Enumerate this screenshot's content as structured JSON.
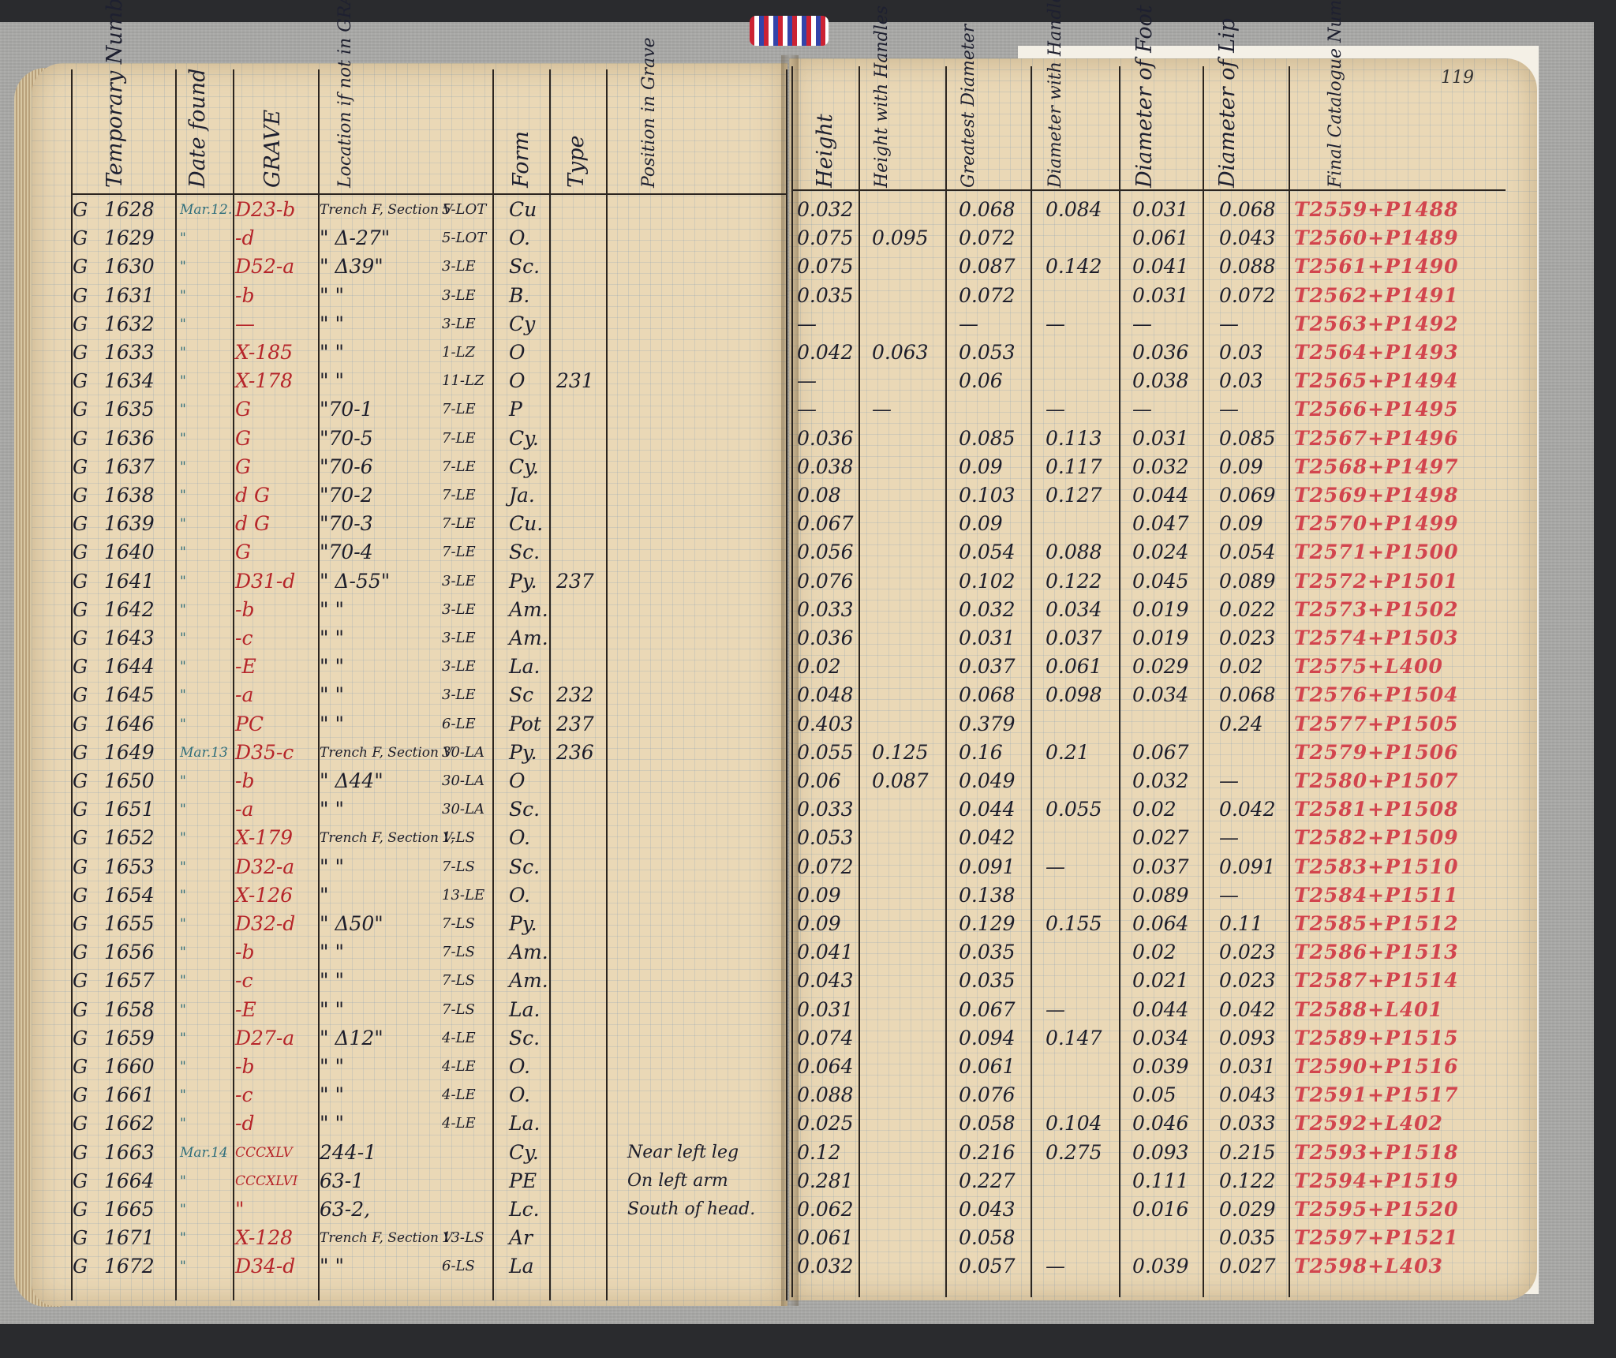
{
  "page_number": "119",
  "headers": {
    "temp_number": "Temporary Number",
    "date_found": "Date found",
    "grave": "GRAVE",
    "location": "Location if not in GRAVE",
    "form": "Form",
    "type": "Type",
    "position": "Position in Grave",
    "height": "Height",
    "height_handles": "Height with Handles",
    "greatest_diameter": "Greatest Diameter",
    "diameter_handles": "Diameter with Handles",
    "diameter_foot": "Diameter of Foot",
    "diameter_lip": "Diameter of Lip",
    "catalogue": "Final Catalogue Number"
  },
  "rows": [
    {
      "prefix": "G",
      "num": "1628",
      "date": "Mar.12.",
      "grave": "D23-b",
      "loc": "Trench F, Section V",
      "locn": "5-LOT",
      "form": "Cu",
      "type": "",
      "pos": "",
      "h": "0.032",
      "hh": "",
      "gd": "0.068",
      "dh": "0.084",
      "df": "0.031",
      "dl": "0.068",
      "cat": "T2559+P1488"
    },
    {
      "prefix": "G",
      "num": "1629",
      "date": "\"",
      "grave": "-d",
      "loc": "\" Δ-27\"",
      "locn": "5-LOT",
      "form": "O.",
      "type": "",
      "pos": "",
      "h": "0.075",
      "hh": "0.095",
      "gd": "0.072",
      "dh": "",
      "df": "0.061",
      "dl": "0.043",
      "cat": "T2560+P1489"
    },
    {
      "prefix": "G",
      "num": "1630",
      "date": "\"",
      "grave": "D52-a",
      "loc": "\" Δ39\"",
      "locn": "3-LE",
      "form": "Sc.",
      "type": "",
      "pos": "",
      "h": "0.075",
      "hh": "",
      "gd": "0.087",
      "dh": "0.142",
      "df": "0.041",
      "dl": "0.088",
      "cat": "T2561+P1490"
    },
    {
      "prefix": "G",
      "num": "1631",
      "date": "\"",
      "grave": "-b",
      "loc": "\"   \"",
      "locn": "3-LE",
      "form": "B.",
      "type": "",
      "pos": "",
      "h": "0.035",
      "hh": "",
      "gd": "0.072",
      "dh": "",
      "df": "0.031",
      "dl": "0.072",
      "cat": "T2562+P1491"
    },
    {
      "prefix": "G",
      "num": "1632",
      "date": "\"",
      "grave": "—",
      "loc": "\"   \"",
      "locn": "3-LE",
      "form": "Cy",
      "type": "",
      "pos": "",
      "h": "—",
      "hh": "",
      "gd": "—",
      "dh": "—",
      "df": "—",
      "dl": "—",
      "cat": "T2563+P1492"
    },
    {
      "prefix": "G",
      "num": "1633",
      "date": "\"",
      "grave": "X-185",
      "loc": "\"   \"",
      "locn": "1-LZ",
      "form": "O",
      "type": "",
      "pos": "",
      "h": "0.042",
      "hh": "0.063",
      "gd": "0.053",
      "dh": "",
      "df": "0.036",
      "dl": "0.03",
      "cat": "T2564+P1493"
    },
    {
      "prefix": "G",
      "num": "1634",
      "date": "\"",
      "grave": "X-178",
      "loc": "\"   \"",
      "locn": "11-LZ",
      "form": "O",
      "type": "231",
      "pos": "",
      "h": "—",
      "hh": "",
      "gd": "0.06",
      "dh": "",
      "df": "0.038",
      "dl": "0.03",
      "cat": "T2565+P1494"
    },
    {
      "prefix": "G",
      "num": "1635",
      "date": "\"",
      "grave": "G",
      "loc": "\"70-1",
      "locn": "7-LE",
      "form": "P",
      "type": "",
      "pos": "",
      "h": "—",
      "hh": "—",
      "gd": "",
      "dh": "—",
      "df": "—",
      "dl": "—",
      "cat": "T2566+P1495"
    },
    {
      "prefix": "G",
      "num": "1636",
      "date": "\"",
      "grave": "G",
      "loc": "\"70-5",
      "locn": "7-LE",
      "form": "Cy.",
      "type": "",
      "pos": "",
      "h": "0.036",
      "hh": "",
      "gd": "0.085",
      "dh": "0.113",
      "df": "0.031",
      "dl": "0.085",
      "cat": "T2567+P1496"
    },
    {
      "prefix": "G",
      "num": "1637",
      "date": "\"",
      "grave": "G",
      "loc": "\"70-6",
      "locn": "7-LE",
      "form": "Cy.",
      "type": "",
      "pos": "",
      "h": "0.038",
      "hh": "",
      "gd": "0.09",
      "dh": "0.117",
      "df": "0.032",
      "dl": "0.09",
      "cat": "T2568+P1497"
    },
    {
      "prefix": "G",
      "num": "1638",
      "date": "\"",
      "grave": "d G",
      "loc": "\"70-2",
      "locn": "7-LE",
      "form": "Ja.",
      "type": "",
      "pos": "",
      "h": "0.08",
      "hh": "",
      "gd": "0.103",
      "dh": "0.127",
      "df": "0.044",
      "dl": "0.069",
      "cat": "T2569+P1498"
    },
    {
      "prefix": "G",
      "num": "1639",
      "date": "\"",
      "grave": "d G",
      "loc": "\"70-3",
      "locn": "7-LE",
      "form": "Cu.",
      "type": "",
      "pos": "",
      "h": "0.067",
      "hh": "",
      "gd": "0.09",
      "dh": "",
      "df": "0.047",
      "dl": "0.09",
      "cat": "T2570+P1499"
    },
    {
      "prefix": "G",
      "num": "1640",
      "date": "\"",
      "grave": "G",
      "loc": "\"70-4",
      "locn": "7-LE",
      "form": "Sc.",
      "type": "",
      "pos": "",
      "h": "0.056",
      "hh": "",
      "gd": "0.054",
      "dh": "0.088",
      "df": "0.024",
      "dl": "0.054",
      "cat": "T2571+P1500"
    },
    {
      "prefix": "G",
      "num": "1641",
      "date": "\"",
      "grave": "D31-d",
      "loc": "\" Δ-55\"",
      "locn": "3-LE",
      "form": "Py.",
      "type": "237",
      "pos": "",
      "h": "0.076",
      "hh": "",
      "gd": "0.102",
      "dh": "0.122",
      "df": "0.045",
      "dl": "0.089",
      "cat": "T2572+P1501"
    },
    {
      "prefix": "G",
      "num": "1642",
      "date": "\"",
      "grave": "-b",
      "loc": "\"   \"",
      "locn": "3-LE",
      "form": "Am.",
      "type": "",
      "pos": "",
      "h": "0.033",
      "hh": "",
      "gd": "0.032",
      "dh": "0.034",
      "df": "0.019",
      "dl": "0.022",
      "cat": "T2573+P1502"
    },
    {
      "prefix": "G",
      "num": "1643",
      "date": "\"",
      "grave": "-c",
      "loc": "\"   \"",
      "locn": "3-LE",
      "form": "Am.",
      "type": "",
      "pos": "",
      "h": "0.036",
      "hh": "",
      "gd": "0.031",
      "dh": "0.037",
      "df": "0.019",
      "dl": "0.023",
      "cat": "T2574+P1503"
    },
    {
      "prefix": "G",
      "num": "1644",
      "date": "\"",
      "grave": "-E",
      "loc": "\"   \"",
      "locn": "3-LE",
      "form": "La.",
      "type": "",
      "pos": "",
      "h": "0.02",
      "hh": "",
      "gd": "0.037",
      "dh": "0.061",
      "df": "0.029",
      "dl": "0.02",
      "cat": "T2575+L400"
    },
    {
      "prefix": "G",
      "num": "1645",
      "date": "\"",
      "grave": "-a",
      "loc": "\"   \"",
      "locn": "3-LE",
      "form": "Sc",
      "type": "232",
      "pos": "",
      "h": "0.048",
      "hh": "",
      "gd": "0.068",
      "dh": "0.098",
      "df": "0.034",
      "dl": "0.068",
      "cat": "T2576+P1504"
    },
    {
      "prefix": "G",
      "num": "1646",
      "date": "\"",
      "grave": "PC",
      "loc": "\"   \"",
      "locn": "6-LE",
      "form": "Pot",
      "type": "237",
      "pos": "",
      "h": "0.403",
      "hh": "",
      "gd": "0.379",
      "dh": "",
      "df": "",
      "dl": "0.24",
      "cat": "T2577+P1505"
    },
    {
      "prefix": "G",
      "num": "1649",
      "date": "Mar.13",
      "grave": "D35-c",
      "loc": "Trench F, Section V",
      "locn": "30-LA",
      "form": "Py.",
      "type": "236",
      "pos": "",
      "h": "0.055",
      "hh": "0.125",
      "gd": "0.16",
      "dh": "0.21",
      "df": "0.067",
      "dl": "",
      "cat": "T2579+P1506"
    },
    {
      "prefix": "G",
      "num": "1650",
      "date": "\"",
      "grave": "-b",
      "loc": "\" Δ44\"",
      "locn": "30-LA",
      "form": "O",
      "type": "",
      "pos": "",
      "h": "0.06",
      "hh": "0.087",
      "gd": "0.049",
      "dh": "",
      "df": "0.032",
      "dl": "—",
      "cat": "T2580+P1507"
    },
    {
      "prefix": "G",
      "num": "1651",
      "date": "\"",
      "grave": "-a",
      "loc": "\"   \"",
      "locn": "30-LA",
      "form": "Sc.",
      "type": "",
      "pos": "",
      "h": "0.033",
      "hh": "",
      "gd": "0.044",
      "dh": "0.055",
      "df": "0.02",
      "dl": "0.042",
      "cat": "T2581+P1508"
    },
    {
      "prefix": "G",
      "num": "1652",
      "date": "\"",
      "grave": "X-179",
      "loc": "Trench F, Section V,",
      "locn": "1-LS",
      "form": "O.",
      "type": "",
      "pos": "",
      "h": "0.053",
      "hh": "",
      "gd": "0.042",
      "dh": "",
      "df": "0.027",
      "dl": "—",
      "cat": "T2582+P1509"
    },
    {
      "prefix": "G",
      "num": "1653",
      "date": "\"",
      "grave": "D32-a",
      "loc": "\"   \"",
      "locn": "7-LS",
      "form": "Sc.",
      "type": "",
      "pos": "",
      "h": "0.072",
      "hh": "",
      "gd": "0.091",
      "dh": "—",
      "df": "0.037",
      "dl": "0.091",
      "cat": "T2583+P1510"
    },
    {
      "prefix": "G",
      "num": "1654",
      "date": "\"",
      "grave": "X-126",
      "loc": "\"",
      "locn": "13-LE",
      "form": "O.",
      "type": "",
      "pos": "",
      "h": "0.09",
      "hh": "",
      "gd": "0.138",
      "dh": "",
      "df": "0.089",
      "dl": "—",
      "cat": "T2584+P1511"
    },
    {
      "prefix": "G",
      "num": "1655",
      "date": "\"",
      "grave": "D32-d",
      "loc": "\" Δ50\"",
      "locn": "7-LS",
      "form": "Py.",
      "type": "",
      "pos": "",
      "h": "0.09",
      "hh": "",
      "gd": "0.129",
      "dh": "0.155",
      "df": "0.064",
      "dl": "0.11",
      "cat": "T2585+P1512"
    },
    {
      "prefix": "G",
      "num": "1656",
      "date": "\"",
      "grave": "-b",
      "loc": "\"   \"",
      "locn": "7-LS",
      "form": "Am.",
      "type": "",
      "pos": "",
      "h": "0.041",
      "hh": "",
      "gd": "0.035",
      "dh": "",
      "df": "0.02",
      "dl": "0.023",
      "cat": "T2586+P1513"
    },
    {
      "prefix": "G",
      "num": "1657",
      "date": "\"",
      "grave": "-c",
      "loc": "\"   \"",
      "locn": "7-LS",
      "form": "Am.",
      "type": "",
      "pos": "",
      "h": "0.043",
      "hh": "",
      "gd": "0.035",
      "dh": "",
      "df": "0.021",
      "dl": "0.023",
      "cat": "T2587+P1514"
    },
    {
      "prefix": "G",
      "num": "1658",
      "date": "\"",
      "grave": "-E",
      "loc": "\"   \"",
      "locn": "7-LS",
      "form": "La.",
      "type": "",
      "pos": "",
      "h": "0.031",
      "hh": "",
      "gd": "0.067",
      "dh": "—",
      "df": "0.044",
      "dl": "0.042",
      "cat": "T2588+L401"
    },
    {
      "prefix": "G",
      "num": "1659",
      "date": "\"",
      "grave": "D27-a",
      "loc": "\" Δ12\"",
      "locn": "4-LE",
      "form": "Sc.",
      "type": "",
      "pos": "",
      "h": "0.074",
      "hh": "",
      "gd": "0.094",
      "dh": "0.147",
      "df": "0.034",
      "dl": "0.093",
      "cat": "T2589+P1515"
    },
    {
      "prefix": "G",
      "num": "1660",
      "date": "\"",
      "grave": "-b",
      "loc": "\"   \"",
      "locn": "4-LE",
      "form": "O.",
      "type": "",
      "pos": "",
      "h": "0.064",
      "hh": "",
      "gd": "0.061",
      "dh": "",
      "df": "0.039",
      "dl": "0.031",
      "cat": "T2590+P1516"
    },
    {
      "prefix": "G",
      "num": "1661",
      "date": "\"",
      "grave": "-c",
      "loc": "\"   \"",
      "locn": "4-LE",
      "form": "O.",
      "type": "",
      "pos": "",
      "h": "0.088",
      "hh": "",
      "gd": "0.076",
      "dh": "",
      "df": "0.05",
      "dl": "0.043",
      "cat": "T2591+P1517"
    },
    {
      "prefix": "G",
      "num": "1662",
      "date": "\"",
      "grave": "-d",
      "loc": "\"   \"",
      "locn": "4-LE",
      "form": "La.",
      "type": "",
      "pos": "",
      "h": "0.025",
      "hh": "",
      "gd": "0.058",
      "dh": "0.104",
      "df": "0.046",
      "dl": "0.033",
      "cat": "T2592+L402"
    },
    {
      "prefix": "G",
      "num": "1663",
      "date": "Mar.14",
      "grave": "CCCXLV",
      "loc": "244-1",
      "locn": "",
      "form": "Cy.",
      "type": "",
      "pos": "Near left leg",
      "h": "0.12",
      "hh": "",
      "gd": "0.216",
      "dh": "0.275",
      "df": "0.093",
      "dl": "0.215",
      "cat": "T2593+P1518"
    },
    {
      "prefix": "G",
      "num": "1664",
      "date": "\"",
      "grave": "CCCXLVI",
      "loc": "63-1",
      "locn": "",
      "form": "PE",
      "type": "",
      "pos": "On left arm",
      "h": "0.281",
      "hh": "",
      "gd": "0.227",
      "dh": "",
      "df": "0.111",
      "dl": "0.122",
      "cat": "T2594+P1519"
    },
    {
      "prefix": "G",
      "num": "1665",
      "date": "\"",
      "grave": "\"",
      "loc": "63-2,",
      "locn": "",
      "form": "Lc.",
      "type": "",
      "pos": "South of head.",
      "h": "0.062",
      "hh": "",
      "gd": "0.043",
      "dh": "",
      "df": "0.016",
      "dl": "0.029",
      "cat": "T2595+P1520"
    },
    {
      "prefix": "G",
      "num": "1671",
      "date": "\"",
      "grave": "X-128",
      "loc": "Trench F, Section V",
      "locn": "13-LS",
      "form": "Ar",
      "type": "",
      "pos": "",
      "h": "0.061",
      "hh": "",
      "gd": "0.058",
      "dh": "",
      "df": "",
      "dl": "0.035",
      "cat": "T2597+P1521"
    },
    {
      "prefix": "G",
      "num": "1672",
      "date": "\"",
      "grave": "D34-d",
      "loc": "\"   \"",
      "locn": "6-LS",
      "form": "La",
      "type": "",
      "pos": "",
      "h": "0.032",
      "hh": "",
      "gd": "0.057",
      "dh": "—",
      "df": "0.039",
      "dl": "0.027",
      "cat": "T2598+L403"
    }
  ]
}
